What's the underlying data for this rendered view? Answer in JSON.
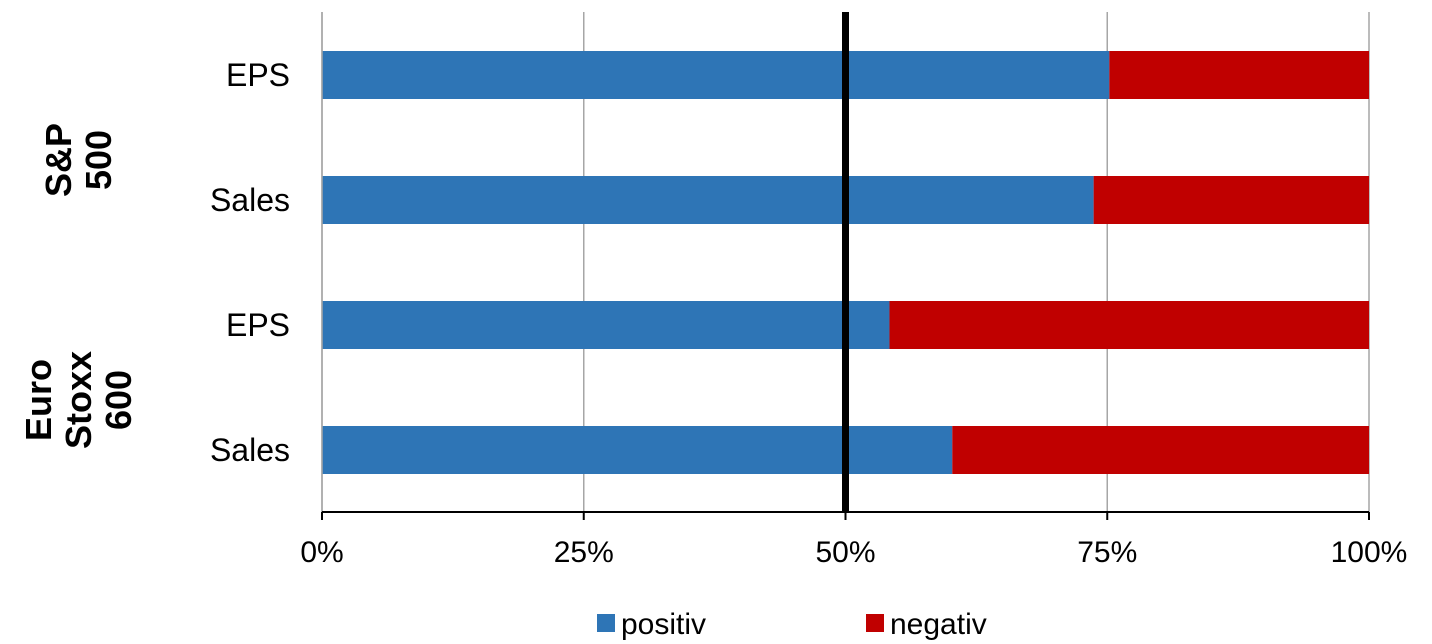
{
  "chart_data": {
    "type": "bar",
    "orientation": "horizontal",
    "stacked": true,
    "title": "",
    "xlabel": "",
    "ylabel": "",
    "xlim": [
      0,
      100
    ],
    "x_ticks": [
      "0%",
      "25%",
      "50%",
      "75%",
      "100%"
    ],
    "x_tick_values": [
      0,
      25,
      50,
      75,
      100
    ],
    "reference_line": 50,
    "grid": "vertical",
    "legend_position": "bottom",
    "groups": [
      {
        "label_lines": [
          "S&P",
          "500"
        ],
        "categories": [
          "EPS",
          "Sales"
        ]
      },
      {
        "label_lines": [
          "Euro",
          "Stoxx",
          "600"
        ],
        "categories": [
          "EPS",
          "Sales"
        ]
      }
    ],
    "categories": [
      "EPS",
      "Sales",
      "EPS",
      "Sales"
    ],
    "series": [
      {
        "name": "positiv",
        "color": "#2e75b6",
        "values": [
          75.2,
          73.7,
          54.2,
          60.2
        ]
      },
      {
        "name": "negativ",
        "color": "#c00000",
        "values": [
          24.8,
          26.3,
          45.8,
          39.8
        ]
      }
    ]
  }
}
